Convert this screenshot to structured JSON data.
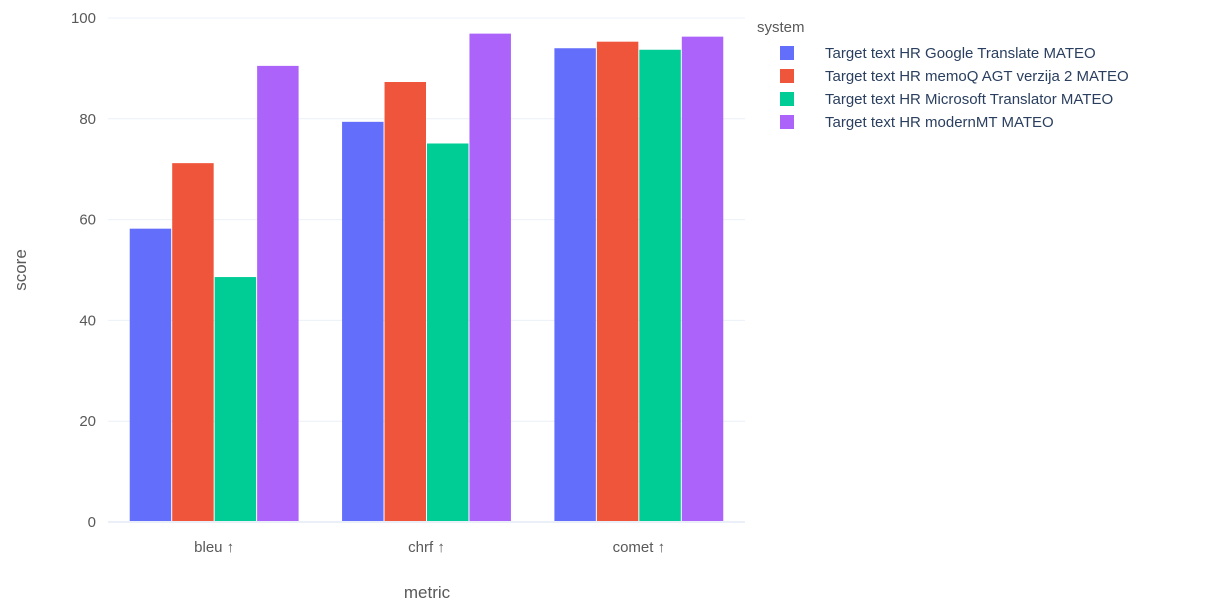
{
  "chart_data": {
    "type": "bar",
    "barmode": "group",
    "title": "",
    "xlabel": "metric",
    "ylabel": "score",
    "categories": [
      "bleu ↑",
      "chrf ↑",
      "comet ↑"
    ],
    "ylim": [
      0,
      100
    ],
    "yticks": [
      0,
      20,
      40,
      60,
      80,
      100
    ],
    "grid": true,
    "legend": {
      "title": "system",
      "placement": "right"
    },
    "series": [
      {
        "name": "Target text HR Google Translate MATEO",
        "color": "#636efa",
        "values": [
          58.2,
          79.4,
          94
        ]
      },
      {
        "name": "Target text HR memoQ AGT verzija 2 MATEO",
        "color": "#ef553b",
        "values": [
          71.2,
          87.3,
          95.3
        ]
      },
      {
        "name": "Target text HR Microsoft Translator MATEO",
        "color": "#00cc96",
        "values": [
          48.6,
          75.1,
          93.7
        ]
      },
      {
        "name": "Target text HR modernMT MATEO",
        "color": "#ab63fa",
        "values": [
          90.5,
          96.9,
          96.3
        ]
      }
    ]
  }
}
